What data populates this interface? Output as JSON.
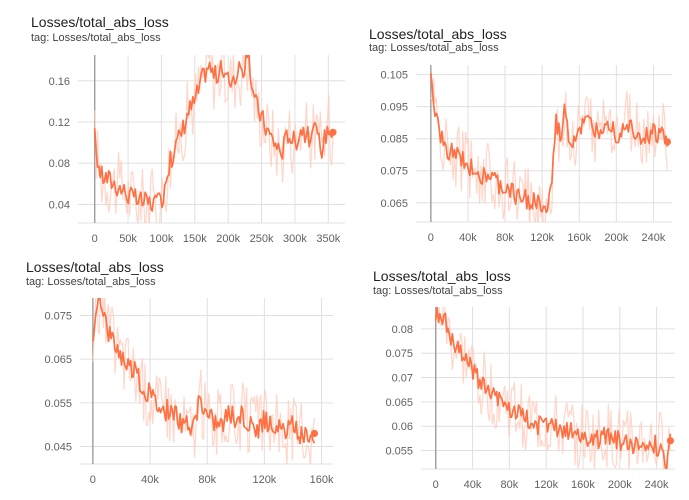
{
  "colors": {
    "line": "#ff7043",
    "band": "#ffccbc",
    "grid": "#e0e0e0",
    "axis": "#9e9e9e",
    "text": "#616161"
  },
  "chart_data": [
    {
      "type": "line",
      "title": "Losses/total_abs_loss",
      "tag": "tag: Losses/total_abs_loss",
      "xlim": [
        -25000,
        375000
      ],
      "ylim": [
        0.022,
        0.185
      ],
      "xticks": [
        0,
        50000,
        100000,
        150000,
        200000,
        250000,
        300000,
        350000
      ],
      "xtick_labels": [
        "0",
        "50k",
        "100k",
        "150k",
        "200k",
        "250k",
        "300k",
        "350k"
      ],
      "yticks": [
        0.04,
        0.08,
        0.12,
        0.16
      ],
      "ytick_labels": [
        "0.04",
        "0.08",
        "0.12",
        "0.16"
      ],
      "series": [
        {
          "name": "total_abs_loss",
          "x": [
            0,
            5000,
            10000,
            20000,
            30000,
            40000,
            50000,
            60000,
            70000,
            80000,
            90000,
            95000,
            100000,
            105000,
            110000,
            120000,
            130000,
            140000,
            150000,
            160000,
            170000,
            180000,
            190000,
            200000,
            210000,
            220000,
            230000,
            240000,
            250000,
            260000,
            270000,
            280000,
            290000,
            300000,
            310000,
            320000,
            330000,
            340000,
            350000,
            357000
          ],
          "y": [
            0.105,
            0.08,
            0.068,
            0.065,
            0.06,
            0.055,
            0.05,
            0.045,
            0.043,
            0.042,
            0.042,
            0.04,
            0.043,
            0.06,
            0.075,
            0.095,
            0.11,
            0.13,
            0.14,
            0.16,
            0.175,
            0.165,
            0.17,
            0.16,
            0.165,
            0.17,
            0.18,
            0.14,
            0.125,
            0.11,
            0.1,
            0.09,
            0.11,
            0.1,
            0.115,
            0.105,
            0.11,
            0.095,
            0.115,
            0.11
          ]
        }
      ]
    },
    {
      "type": "line",
      "title": "Losses/total_abs_loss",
      "tag": "tag: Losses/total_abs_loss",
      "xlim": [
        -16000,
        260000
      ],
      "ylim": [
        0.059,
        0.108
      ],
      "xticks": [
        0,
        40000,
        80000,
        120000,
        160000,
        200000,
        240000
      ],
      "xtick_labels": [
        "0",
        "40k",
        "80k",
        "120k",
        "160k",
        "200k",
        "240k"
      ],
      "yticks": [
        0.065,
        0.075,
        0.085,
        0.095,
        0.105
      ],
      "ytick_labels": [
        "0.065",
        "0.075",
        "0.085",
        "0.095",
        "0.105"
      ],
      "series": [
        {
          "name": "total_abs_loss",
          "x": [
            0,
            4000,
            8000,
            15000,
            25000,
            35000,
            45000,
            55000,
            65000,
            75000,
            85000,
            95000,
            105000,
            115000,
            125000,
            130000,
            135000,
            140000,
            145000,
            150000,
            160000,
            170000,
            180000,
            190000,
            200000,
            210000,
            220000,
            230000,
            240000,
            250000,
            255000
          ],
          "y": [
            0.106,
            0.093,
            0.088,
            0.082,
            0.08,
            0.078,
            0.076,
            0.074,
            0.073,
            0.07,
            0.069,
            0.067,
            0.066,
            0.065,
            0.062,
            0.07,
            0.09,
            0.085,
            0.095,
            0.083,
            0.088,
            0.09,
            0.087,
            0.092,
            0.086,
            0.09,
            0.088,
            0.085,
            0.087,
            0.086,
            0.084
          ]
        }
      ]
    },
    {
      "type": "line",
      "title": "Losses/total_abs_loss",
      "tag": "tag: Losses/total_abs_loss",
      "xlim": [
        -9000,
        168000
      ],
      "ylim": [
        0.041,
        0.079
      ],
      "xticks": [
        0,
        40000,
        80000,
        120000,
        160000
      ],
      "xtick_labels": [
        "0",
        "40k",
        "80k",
        "120k",
        "160k"
      ],
      "yticks": [
        0.045,
        0.055,
        0.065,
        0.075
      ],
      "ytick_labels": [
        "0.045",
        "0.055",
        "0.065",
        "0.075"
      ],
      "series": [
        {
          "name": "total_abs_loss",
          "x": [
            0,
            3000,
            6000,
            10000,
            15000,
            20000,
            25000,
            30000,
            35000,
            40000,
            45000,
            50000,
            55000,
            60000,
            65000,
            70000,
            75000,
            80000,
            85000,
            90000,
            95000,
            100000,
            105000,
            110000,
            115000,
            120000,
            125000,
            130000,
            135000,
            140000,
            145000,
            150000,
            155000
          ],
          "y": [
            0.067,
            0.078,
            0.079,
            0.072,
            0.069,
            0.066,
            0.064,
            0.062,
            0.058,
            0.057,
            0.055,
            0.053,
            0.054,
            0.051,
            0.05,
            0.049,
            0.056,
            0.052,
            0.051,
            0.05,
            0.053,
            0.051,
            0.052,
            0.05,
            0.049,
            0.051,
            0.05,
            0.049,
            0.048,
            0.05,
            0.047,
            0.048,
            0.048
          ]
        }
      ]
    },
    {
      "type": "line",
      "title": "Losses/total_abs_loss",
      "tag": "tag: Losses/total_abs_loss",
      "xlim": [
        -16000,
        260000
      ],
      "ylim": [
        0.0512,
        0.0845
      ],
      "xticks": [
        0,
        40000,
        80000,
        120000,
        160000,
        200000,
        240000
      ],
      "xtick_labels": [
        "0",
        "40k",
        "80k",
        "120k",
        "160k",
        "200k",
        "240k"
      ],
      "yticks": [
        0.055,
        0.06,
        0.065,
        0.07,
        0.075,
        0.08
      ],
      "ytick_labels": [
        "0.055",
        "0.06",
        "0.065",
        "0.07",
        "0.075",
        "0.08"
      ],
      "series": [
        {
          "name": "total_abs_loss",
          "x": [
            0,
            4000,
            8000,
            15000,
            25000,
            35000,
            45000,
            55000,
            65000,
            75000,
            85000,
            95000,
            105000,
            115000,
            125000,
            135000,
            145000,
            155000,
            165000,
            175000,
            185000,
            195000,
            205000,
            215000,
            225000,
            235000,
            245000,
            250000,
            255000
          ],
          "y": [
            0.082,
            0.084,
            0.083,
            0.078,
            0.075,
            0.073,
            0.07,
            0.068,
            0.066,
            0.065,
            0.063,
            0.062,
            0.061,
            0.06,
            0.06,
            0.059,
            0.059,
            0.058,
            0.058,
            0.057,
            0.058,
            0.057,
            0.057,
            0.056,
            0.057,
            0.056,
            0.056,
            0.052,
            0.057
          ]
        }
      ]
    }
  ]
}
